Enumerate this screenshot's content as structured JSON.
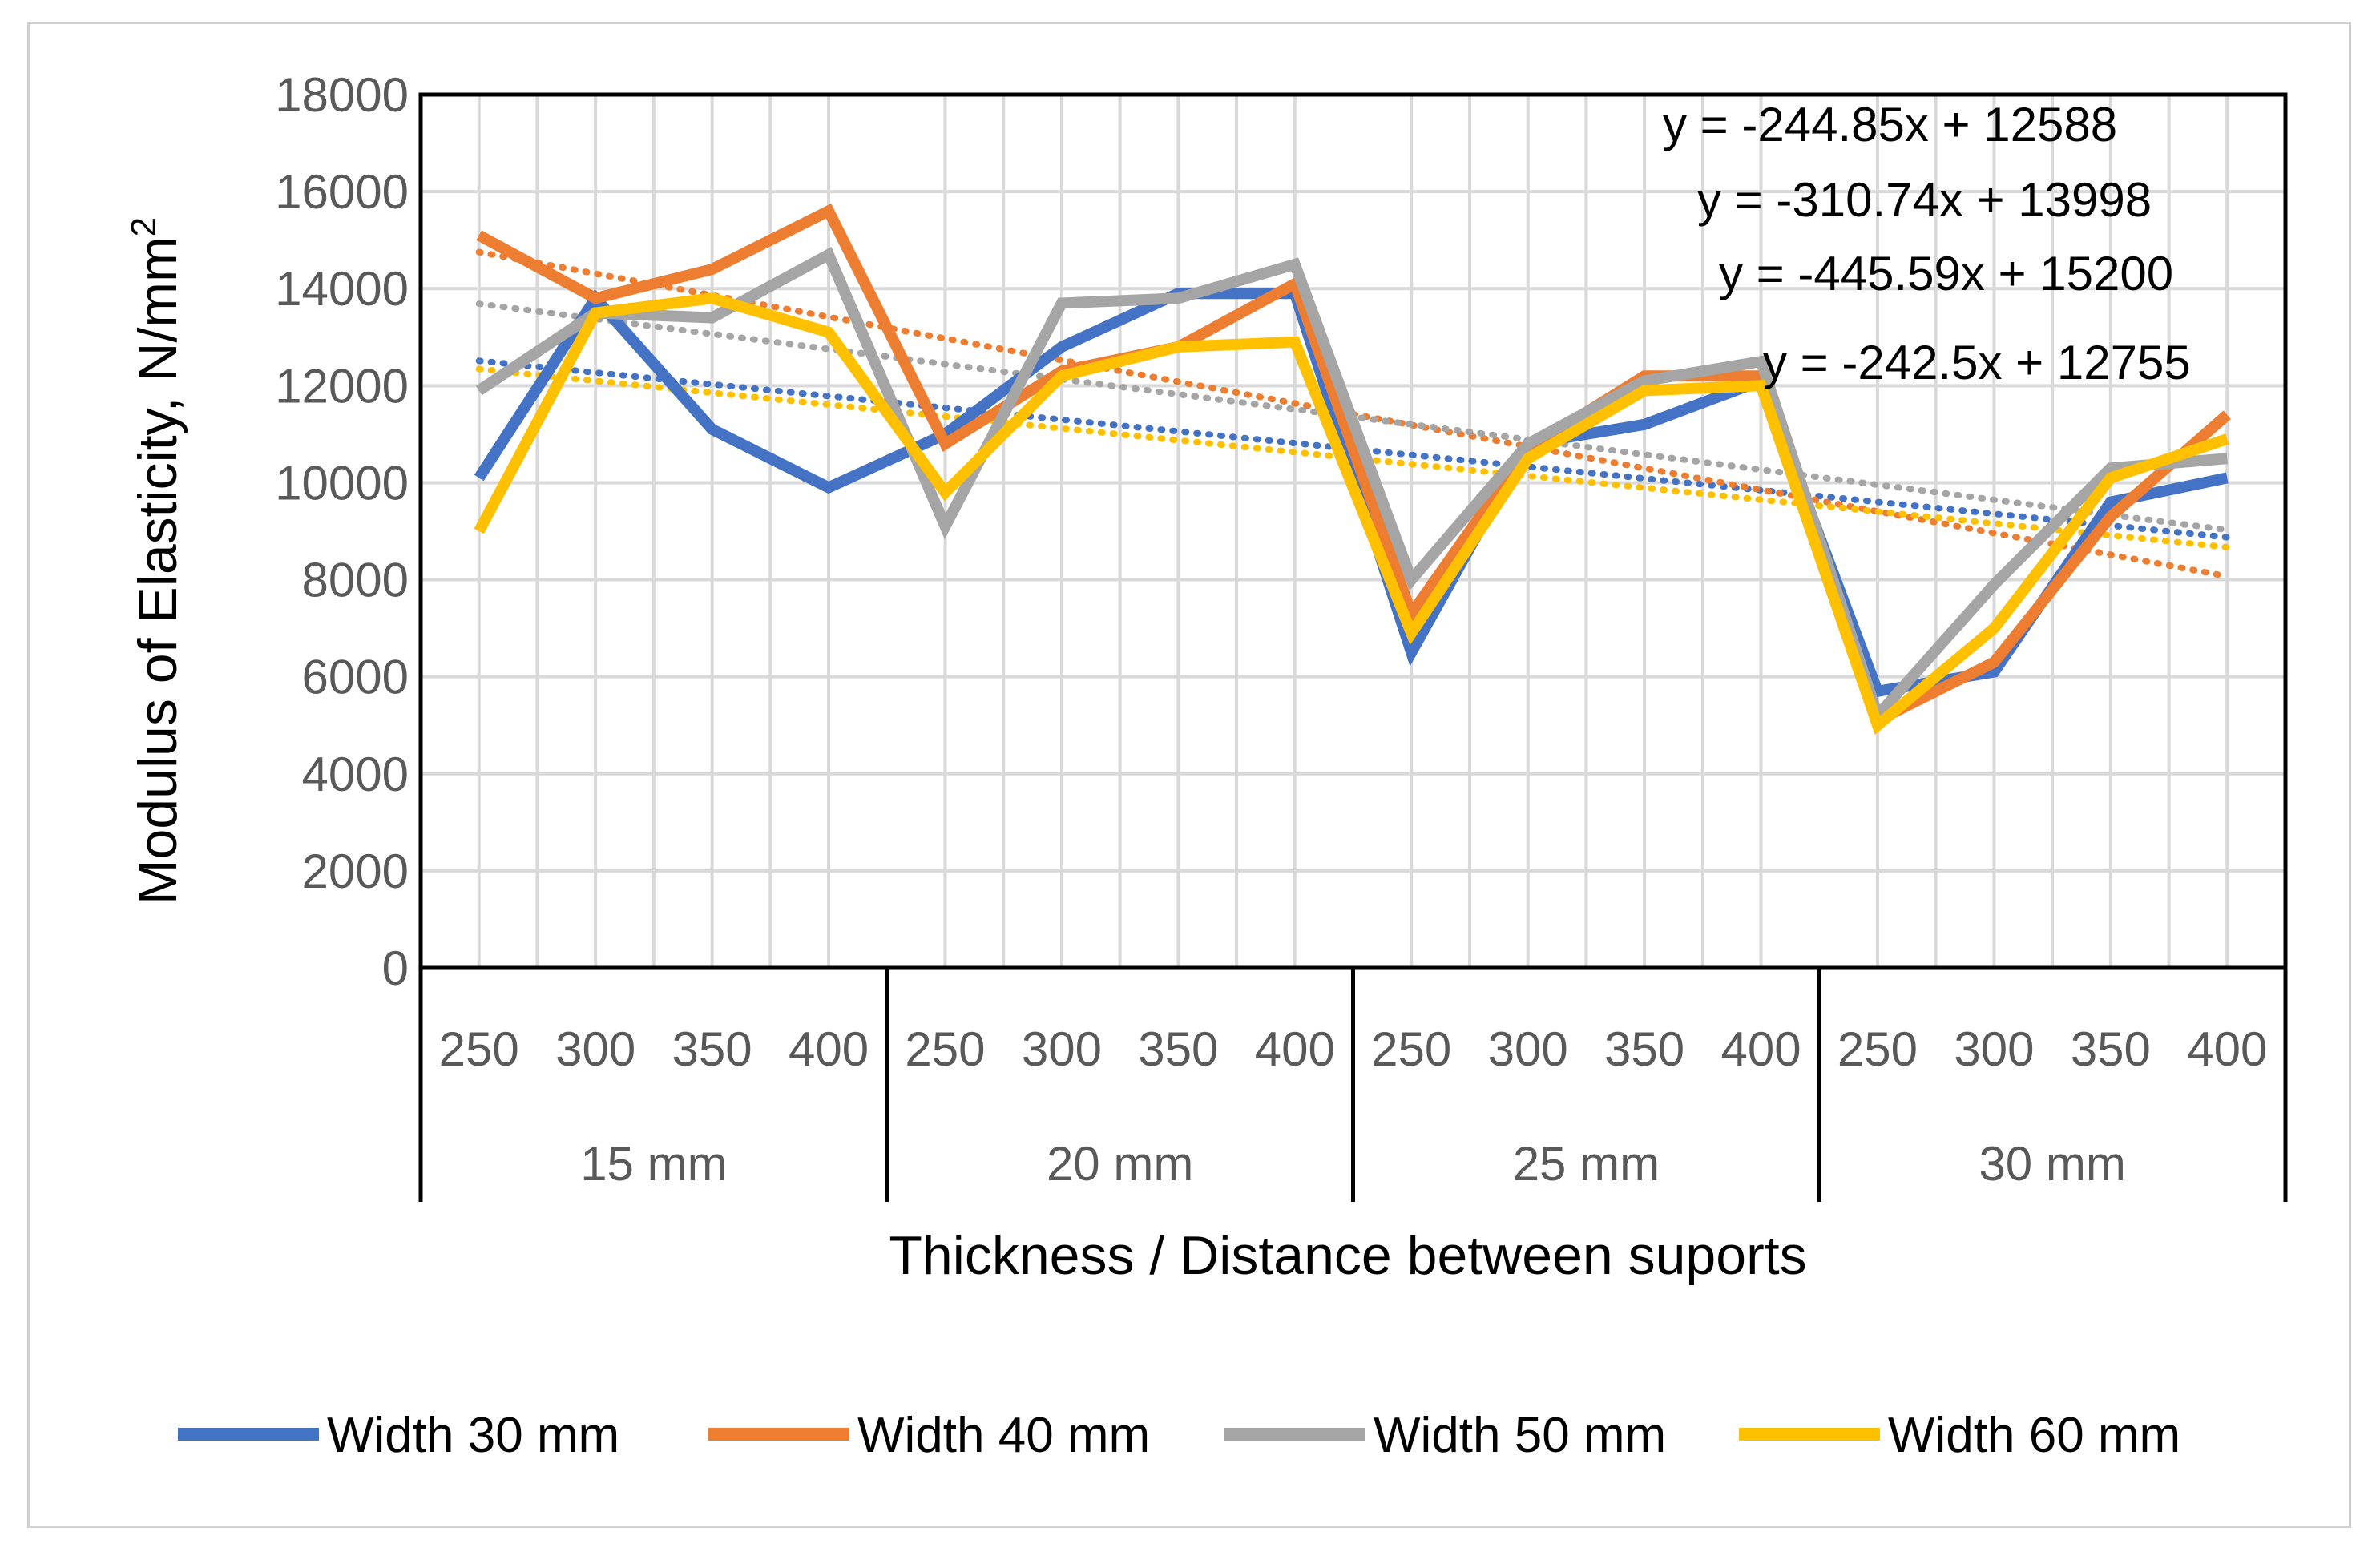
{
  "chart_data": {
    "type": "line",
    "ylabel": "Modulus of Elasticity, N/mm",
    "ylabel_superscript": "2",
    "xlabel": "Thickness / Distance between suports",
    "ylim": [
      0,
      18000
    ],
    "yticks": [
      "0",
      "2000",
      "4000",
      "6000",
      "8000",
      "10000",
      "12000",
      "14000",
      "16000",
      "18000"
    ],
    "groups": [
      "15 mm",
      "20 mm",
      "25 mm",
      "30 mm"
    ],
    "categories": [
      "250",
      "300",
      "350",
      "400",
      "250",
      "300",
      "350",
      "400",
      "250",
      "300",
      "350",
      "400",
      "250",
      "300",
      "350",
      "400"
    ],
    "series": [
      {
        "name": "Width 30  mm",
        "color": "#4472C4",
        "values": [
          10100,
          13800,
          11100,
          9900,
          11000,
          12800,
          13900,
          13900,
          6500,
          10800,
          11200,
          12100,
          5700,
          6100,
          9600,
          10100
        ],
        "trend": {
          "slope": -242.5,
          "intercept": 12755
        }
      },
      {
        "name": "Width 40 mm",
        "color": "#ED7D31",
        "values": [
          15100,
          13800,
          14400,
          15600,
          10800,
          12300,
          12800,
          14100,
          7300,
          10700,
          12200,
          12200,
          5100,
          6300,
          9300,
          11400
        ],
        "trend": {
          "slope": -445.59,
          "intercept": 15200
        }
      },
      {
        "name": "Width 50 mm",
        "color": "#A5A5A5",
        "values": [
          11900,
          13500,
          13400,
          14700,
          9100,
          13700,
          13800,
          14500,
          8000,
          10800,
          12100,
          12500,
          5200,
          7900,
          10300,
          10500
        ],
        "trend": {
          "slope": -310.74,
          "intercept": 13998
        }
      },
      {
        "name": "Width 60 mm",
        "color": "#FFC000",
        "values": [
          9000,
          13500,
          13800,
          13100,
          9800,
          12200,
          12800,
          12900,
          6900,
          10500,
          11900,
          12000,
          5000,
          7000,
          10100,
          10900
        ],
        "trend": {
          "slope": -244.85,
          "intercept": 12588
        }
      }
    ],
    "equations": [
      "y = -244.85x + 12588",
      "y = -310.74x + 13998",
      "y = -445.59x + 15200",
      "y = -242.5x + 12755"
    ],
    "legend_position": "bottom"
  }
}
